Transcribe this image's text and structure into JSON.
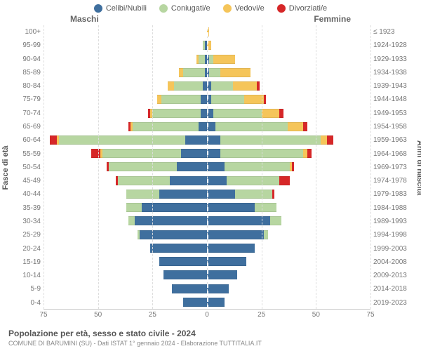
{
  "legend": [
    {
      "label": "Celibi/Nubili",
      "color": "#3f6f9e"
    },
    {
      "label": "Coniugati/e",
      "color": "#b7d6a1"
    },
    {
      "label": "Vedovi/e",
      "color": "#f5c55a"
    },
    {
      "label": "Divorziati/e",
      "color": "#d62728"
    }
  ],
  "headers": {
    "left": "Maschi",
    "right": "Femmine"
  },
  "ylabel_left": "Fasce di età",
  "ylabel_right": "Anni di nascita",
  "x_ticks": [
    "75",
    "50",
    "25",
    "0",
    "25",
    "50",
    "75"
  ],
  "x_max": 75,
  "footer": {
    "title": "Popolazione per età, sesso e stato civile - 2024",
    "subtitle": "COMUNE DI BARUMINI (SU) - Dati ISTAT 1° gennaio 2024 - Elaborazione TUTTITALIA.IT"
  },
  "age_labels": [
    "100+",
    "95-99",
    "90-94",
    "85-89",
    "80-84",
    "75-79",
    "70-74",
    "65-69",
    "60-64",
    "55-59",
    "50-54",
    "45-49",
    "40-44",
    "35-39",
    "30-34",
    "25-29",
    "20-24",
    "15-19",
    "10-14",
    "5-9",
    "0-4"
  ],
  "year_labels": [
    "≤ 1923",
    "1924-1928",
    "1929-1933",
    "1934-1938",
    "1939-1943",
    "1944-1948",
    "1949-1953",
    "1954-1958",
    "1959-1963",
    "1964-1968",
    "1969-1973",
    "1974-1978",
    "1979-1983",
    "1984-1988",
    "1989-1993",
    "1994-1998",
    "1999-2003",
    "2004-2008",
    "2009-2013",
    "2014-2018",
    "2019-2023"
  ],
  "bars": [
    {
      "m": {
        "c": 0,
        "co": 0,
        "v": 0,
        "d": 0
      },
      "f": {
        "c": 0,
        "co": 0,
        "v": 1,
        "d": 0
      }
    },
    {
      "m": {
        "c": 1,
        "co": 1,
        "v": 0,
        "d": 0
      },
      "f": {
        "c": 0,
        "co": 0,
        "v": 2,
        "d": 0
      }
    },
    {
      "m": {
        "c": 1,
        "co": 3,
        "v": 1,
        "d": 0
      },
      "f": {
        "c": 1,
        "co": 2,
        "v": 10,
        "d": 0
      }
    },
    {
      "m": {
        "c": 1,
        "co": 10,
        "v": 2,
        "d": 0
      },
      "f": {
        "c": 1,
        "co": 5,
        "v": 14,
        "d": 0
      }
    },
    {
      "m": {
        "c": 2,
        "co": 13,
        "v": 3,
        "d": 0
      },
      "f": {
        "c": 2,
        "co": 10,
        "v": 11,
        "d": 1
      }
    },
    {
      "m": {
        "c": 3,
        "co": 18,
        "v": 2,
        "d": 0
      },
      "f": {
        "c": 2,
        "co": 15,
        "v": 9,
        "d": 1
      }
    },
    {
      "m": {
        "c": 3,
        "co": 22,
        "v": 1,
        "d": 1
      },
      "f": {
        "c": 3,
        "co": 22,
        "v": 8,
        "d": 2
      }
    },
    {
      "m": {
        "c": 4,
        "co": 30,
        "v": 1,
        "d": 1
      },
      "f": {
        "c": 4,
        "co": 33,
        "v": 7,
        "d": 2
      }
    },
    {
      "m": {
        "c": 10,
        "co": 58,
        "v": 1,
        "d": 3
      },
      "f": {
        "c": 6,
        "co": 46,
        "v": 3,
        "d": 3
      }
    },
    {
      "m": {
        "c": 12,
        "co": 36,
        "v": 1,
        "d": 4
      },
      "f": {
        "c": 6,
        "co": 38,
        "v": 2,
        "d": 2
      }
    },
    {
      "m": {
        "c": 14,
        "co": 31,
        "v": 0,
        "d": 1
      },
      "f": {
        "c": 8,
        "co": 30,
        "v": 1,
        "d": 1
      }
    },
    {
      "m": {
        "c": 17,
        "co": 24,
        "v": 0,
        "d": 1
      },
      "f": {
        "c": 9,
        "co": 24,
        "v": 0,
        "d": 5
      }
    },
    {
      "m": {
        "c": 22,
        "co": 15,
        "v": 0,
        "d": 0
      },
      "f": {
        "c": 13,
        "co": 17,
        "v": 0,
        "d": 1
      }
    },
    {
      "m": {
        "c": 30,
        "co": 7,
        "v": 0,
        "d": 0
      },
      "f": {
        "c": 22,
        "co": 10,
        "v": 0,
        "d": 0
      }
    },
    {
      "m": {
        "c": 33,
        "co": 3,
        "v": 0,
        "d": 0
      },
      "f": {
        "c": 29,
        "co": 5,
        "v": 0,
        "d": 0
      }
    },
    {
      "m": {
        "c": 31,
        "co": 1,
        "v": 0,
        "d": 0
      },
      "f": {
        "c": 26,
        "co": 2,
        "v": 0,
        "d": 0
      }
    },
    {
      "m": {
        "c": 26,
        "co": 0,
        "v": 0,
        "d": 0
      },
      "f": {
        "c": 22,
        "co": 0,
        "v": 0,
        "d": 0
      }
    },
    {
      "m": {
        "c": 22,
        "co": 0,
        "v": 0,
        "d": 0
      },
      "f": {
        "c": 18,
        "co": 0,
        "v": 0,
        "d": 0
      }
    },
    {
      "m": {
        "c": 20,
        "co": 0,
        "v": 0,
        "d": 0
      },
      "f": {
        "c": 14,
        "co": 0,
        "v": 0,
        "d": 0
      }
    },
    {
      "m": {
        "c": 16,
        "co": 0,
        "v": 0,
        "d": 0
      },
      "f": {
        "c": 10,
        "co": 0,
        "v": 0,
        "d": 0
      }
    },
    {
      "m": {
        "c": 11,
        "co": 0,
        "v": 0,
        "d": 0
      },
      "f": {
        "c": 8,
        "co": 0,
        "v": 0,
        "d": 0
      }
    }
  ],
  "colors": {
    "c": "#3f6f9e",
    "co": "#b7d6a1",
    "v": "#f5c55a",
    "d": "#d62728",
    "bg": "#ffffff",
    "grid": "#dddddd"
  }
}
